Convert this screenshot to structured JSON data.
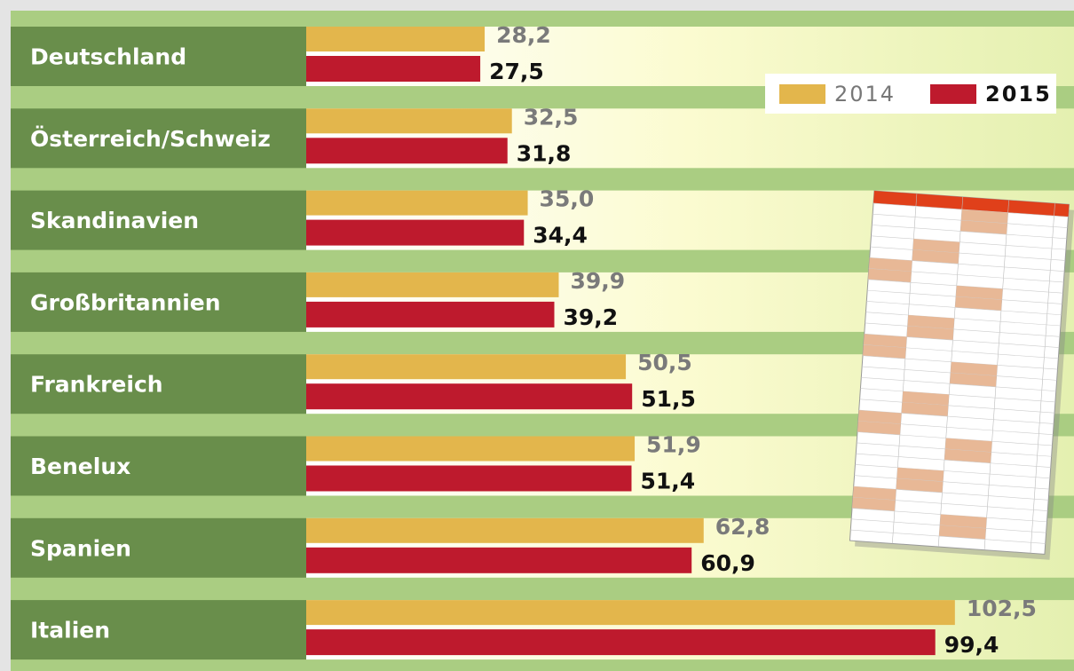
{
  "chart_data": {
    "type": "bar",
    "categories": [
      "Deutschland",
      "Österreich/Schweiz",
      "Skandinavien",
      "Großbritannien",
      "Frankreich",
      "Benelux",
      "Spanien",
      "Italien"
    ],
    "series": [
      {
        "name": "2014",
        "color": "#e3b64c",
        "values": [
          28.2,
          32.5,
          35.0,
          39.9,
          50.5,
          51.9,
          62.8,
          102.5
        ],
        "value_labels": [
          "28,2",
          "32,5",
          "35,0",
          "39,9",
          "50,5",
          "51,9",
          "62,8",
          "102,5"
        ]
      },
      {
        "name": "2015",
        "color": "#be1a2d",
        "values": [
          27.5,
          31.8,
          34.4,
          39.2,
          51.5,
          51.4,
          60.9,
          99.4
        ],
        "value_labels": [
          "27,5",
          "31,8",
          "34,4",
          "39,2",
          "51,5",
          "51,4",
          "60,9",
          "99,4"
        ]
      }
    ]
  }
}
